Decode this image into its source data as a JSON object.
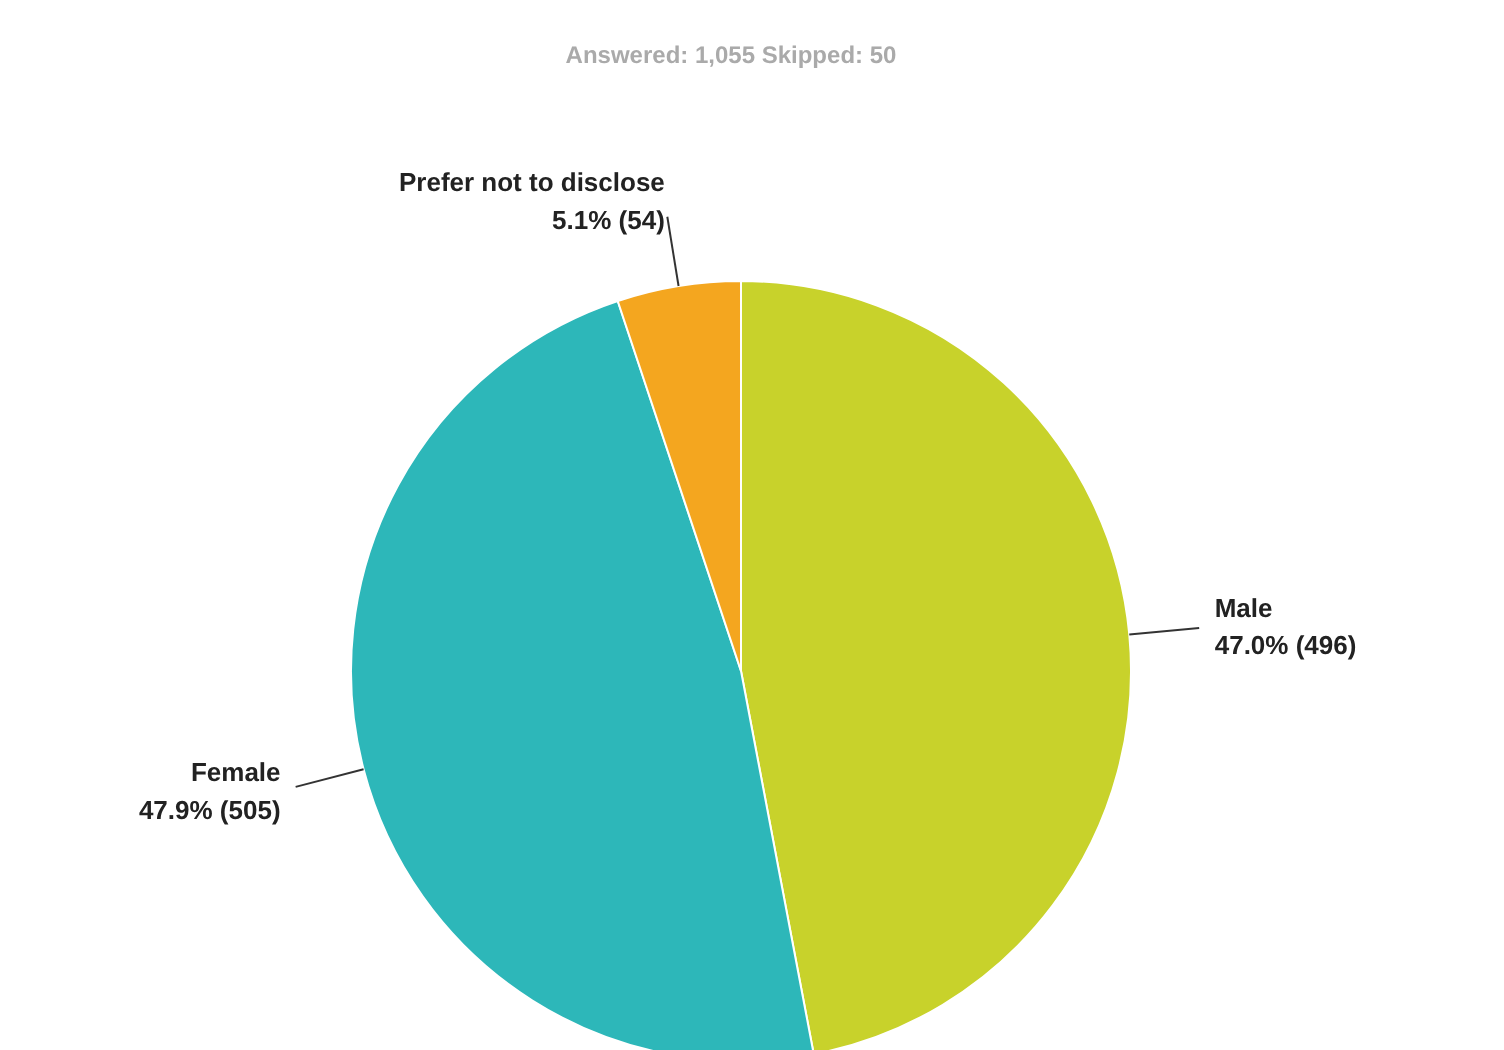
{
  "chart_data": {
    "type": "pie",
    "subtitle": "Answered: 1,055    Skipped: 50",
    "categories": [
      "Male",
      "Female",
      "Prefer not to disclose"
    ],
    "values": [
      496,
      505,
      54
    ],
    "colors": [
      "#c8d22b",
      "#2db7b9",
      "#f4a61f"
    ],
    "value_labels": [
      "47.0% (496)",
      "47.9% (505)",
      "5.1% (54)"
    ]
  }
}
